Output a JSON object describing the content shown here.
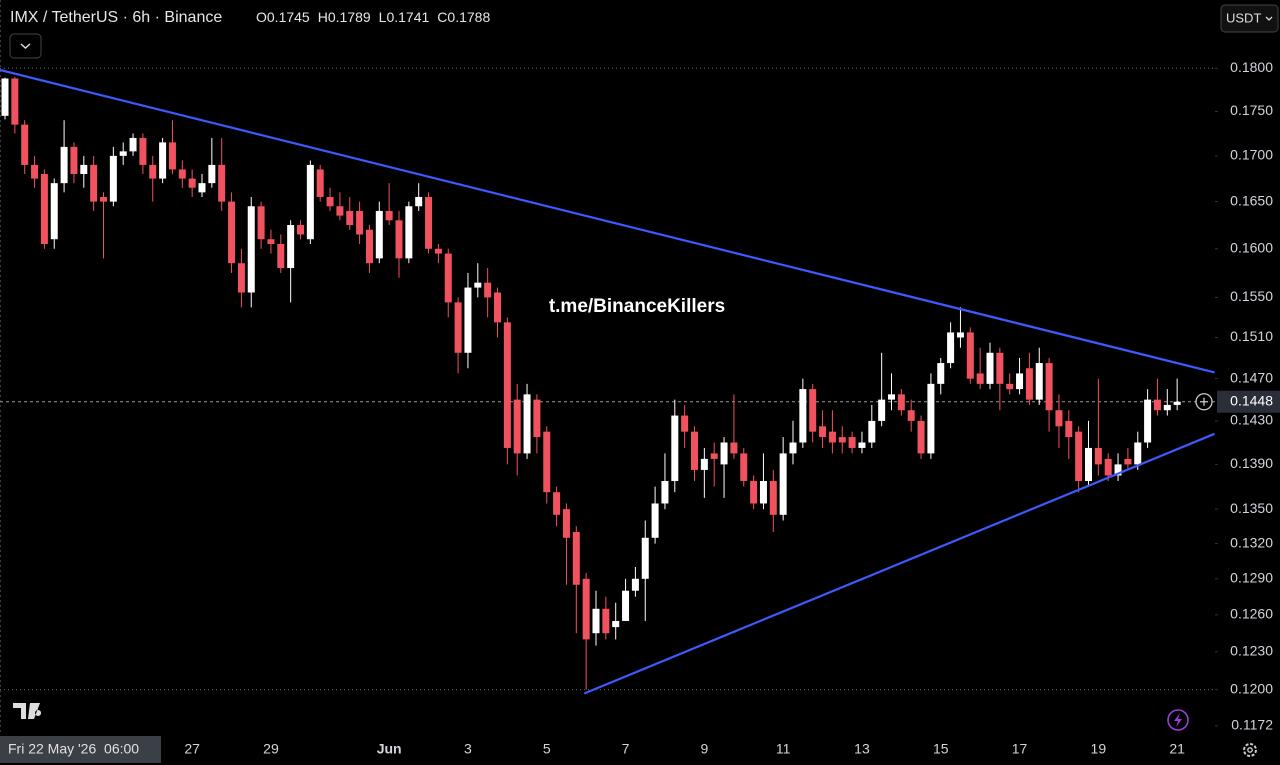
{
  "chart_data": {
    "type": "candlestick",
    "title": "IMX / TetherUS · 6h · Binance",
    "legend": [
      {
        "label": "O",
        "value": 0.1745
      },
      {
        "label": "H",
        "value": 0.1789
      },
      {
        "label": "L",
        "value": 0.1741
      },
      {
        "label": "C",
        "value": 0.1788
      }
    ],
    "currency_button": "USDT",
    "watermark": "t.me/BinanceKillers",
    "crosshair_time": "Fri 22 May '26  06:00",
    "log_scale": true,
    "up_color": "#ffffff",
    "down_color": "#f0525f",
    "ylim": [
      0.1165,
      0.1882
    ],
    "yticks": [
      {
        "value": 0.18,
        "label": "0.1800"
      },
      {
        "value": 0.175,
        "label": "0.1750"
      },
      {
        "value": 0.17,
        "label": "0.1700"
      },
      {
        "value": 0.165,
        "label": "0.1650"
      },
      {
        "value": 0.16,
        "label": "0.1600"
      },
      {
        "value": 0.155,
        "label": "0.1550"
      },
      {
        "value": 0.151,
        "label": "0.1510"
      },
      {
        "value": 0.147,
        "label": "0.1470"
      },
      {
        "value": 0.143,
        "label": "0.1430"
      },
      {
        "value": 0.139,
        "label": "0.1390"
      },
      {
        "value": 0.135,
        "label": "0.1350"
      },
      {
        "value": 0.132,
        "label": "0.1320"
      },
      {
        "value": 0.129,
        "label": "0.1290"
      },
      {
        "value": 0.126,
        "label": "0.1260"
      },
      {
        "value": 0.123,
        "label": "0.1230"
      },
      {
        "value": 0.12,
        "label": "0.1200"
      },
      0.1172
    ],
    "dotted_levels": [
      0.18,
      0.12
    ],
    "last_price": 0.1448,
    "categories": [
      null,
      null,
      null,
      null,
      null,
      null,
      null,
      null,
      null,
      null,
      null,
      null,
      null,
      null,
      null,
      null,
      null,
      null,
      null,
      "27",
      null,
      null,
      null,
      null,
      null,
      null,
      null,
      "29",
      null,
      null,
      null,
      null,
      null,
      null,
      null,
      null,
      null,
      null,
      null,
      "Jun",
      null,
      null,
      null,
      null,
      null,
      null,
      null,
      "3",
      null,
      null,
      null,
      null,
      null,
      null,
      null,
      "5",
      null,
      null,
      null,
      null,
      null,
      null,
      null,
      "7",
      null,
      null,
      null,
      null,
      null,
      null,
      null,
      "9",
      null,
      null,
      null,
      null,
      null,
      null,
      null,
      "11",
      null,
      null,
      null,
      null,
      null,
      null,
      null,
      "13",
      null,
      null,
      null,
      null,
      null,
      null,
      null,
      "15",
      null,
      null,
      null,
      null,
      null,
      null,
      null,
      "17",
      null,
      null,
      null,
      null,
      null,
      null,
      null,
      "19",
      null,
      null,
      null,
      null,
      null,
      null,
      null,
      "21"
    ],
    "ohlc": [
      [
        0.1745,
        0.1789,
        0.1741,
        0.1788
      ],
      [
        0.1788,
        0.179,
        0.1725,
        0.1735
      ],
      [
        0.1735,
        0.174,
        0.168,
        0.169
      ],
      [
        0.169,
        0.17,
        0.1665,
        0.1675
      ],
      [
        0.168,
        0.1685,
        0.16,
        0.1605
      ],
      [
        0.161,
        0.1675,
        0.16,
        0.167
      ],
      [
        0.167,
        0.174,
        0.166,
        0.171
      ],
      [
        0.171,
        0.1715,
        0.167,
        0.168
      ],
      [
        0.168,
        0.17,
        0.1665,
        0.169
      ],
      [
        0.169,
        0.17,
        0.164,
        0.165
      ],
      [
        0.1655,
        0.166,
        0.159,
        0.165
      ],
      [
        0.165,
        0.171,
        0.1645,
        0.17
      ],
      [
        0.17,
        0.1715,
        0.169,
        0.1705
      ],
      [
        0.1705,
        0.1725,
        0.17,
        0.172
      ],
      [
        0.172,
        0.1725,
        0.168,
        0.169
      ],
      [
        0.169,
        0.17,
        0.165,
        0.1675
      ],
      [
        0.1675,
        0.172,
        0.167,
        0.1715
      ],
      [
        0.1715,
        0.174,
        0.168,
        0.1685
      ],
      [
        0.1685,
        0.1695,
        0.1665,
        0.1675
      ],
      [
        0.1675,
        0.1685,
        0.1655,
        0.1665
      ],
      [
        0.166,
        0.168,
        0.1655,
        0.167
      ],
      [
        0.167,
        0.172,
        0.1665,
        0.169
      ],
      [
        0.169,
        0.172,
        0.164,
        0.165
      ],
      [
        0.165,
        0.166,
        0.1575,
        0.1585
      ],
      [
        0.1585,
        0.16,
        0.154,
        0.1555
      ],
      [
        0.1555,
        0.1655,
        0.154,
        0.1645
      ],
      [
        0.1645,
        0.165,
        0.16,
        0.161
      ],
      [
        0.161,
        0.162,
        0.1595,
        0.1605
      ],
      [
        0.1605,
        0.1615,
        0.1575,
        0.158
      ],
      [
        0.158,
        0.163,
        0.1545,
        0.1625
      ],
      [
        0.1625,
        0.163,
        0.161,
        0.1615
      ],
      [
        0.161,
        0.1695,
        0.1605,
        0.169
      ],
      [
        0.1685,
        0.169,
        0.165,
        0.1655
      ],
      [
        0.1655,
        0.1665,
        0.164,
        0.1645
      ],
      [
        0.1645,
        0.166,
        0.163,
        0.1635
      ],
      [
        0.164,
        0.1655,
        0.162,
        0.1625
      ],
      [
        0.164,
        0.165,
        0.1605,
        0.1615
      ],
      [
        0.162,
        0.1625,
        0.1575,
        0.1585
      ],
      [
        0.159,
        0.165,
        0.1585,
        0.164
      ],
      [
        0.164,
        0.167,
        0.1625,
        0.163
      ],
      [
        0.163,
        0.164,
        0.157,
        0.159
      ],
      [
        0.159,
        0.165,
        0.1585,
        0.1645
      ],
      [
        0.1645,
        0.167,
        0.164,
        0.1655
      ],
      [
        0.1655,
        0.166,
        0.1595,
        0.16
      ],
      [
        0.16,
        0.1605,
        0.1585,
        0.1595
      ],
      [
        0.1595,
        0.16,
        0.153,
        0.1545
      ],
      [
        0.1545,
        0.155,
        0.1475,
        0.1495
      ],
      [
        0.1495,
        0.1575,
        0.148,
        0.156
      ],
      [
        0.156,
        0.1585,
        0.155,
        0.1565
      ],
      [
        0.1565,
        0.158,
        0.153,
        0.155
      ],
      [
        0.1555,
        0.156,
        0.151,
        0.1525
      ],
      [
        0.1525,
        0.153,
        0.139,
        0.1405
      ],
      [
        0.145,
        0.1465,
        0.138,
        0.14
      ],
      [
        0.14,
        0.1465,
        0.1395,
        0.1455
      ],
      [
        0.145,
        0.1455,
        0.14,
        0.1415
      ],
      [
        0.142,
        0.1425,
        0.1355,
        0.1365
      ],
      [
        0.1365,
        0.137,
        0.1335,
        0.1345
      ],
      [
        0.135,
        0.1355,
        0.1285,
        0.1325
      ],
      [
        0.133,
        0.1335,
        0.1245,
        0.1285
      ],
      [
        0.129,
        0.1295,
        0.12,
        0.124
      ],
      [
        0.1245,
        0.128,
        0.1235,
        0.1265
      ],
      [
        0.1265,
        0.1275,
        0.124,
        0.1245
      ],
      [
        0.125,
        0.127,
        0.124,
        0.1255
      ],
      [
        0.1255,
        0.129,
        0.1255,
        0.128
      ],
      [
        0.128,
        0.13,
        0.1275,
        0.129
      ],
      [
        0.129,
        0.134,
        0.1255,
        0.1325
      ],
      [
        0.1325,
        0.137,
        0.132,
        0.1355
      ],
      [
        0.1355,
        0.14,
        0.135,
        0.1375
      ],
      [
        0.1375,
        0.145,
        0.1365,
        0.1435
      ],
      [
        0.1435,
        0.1445,
        0.1405,
        0.142
      ],
      [
        0.142,
        0.1425,
        0.1375,
        0.1385
      ],
      [
        0.1385,
        0.1405,
        0.136,
        0.1395
      ],
      [
        0.14,
        0.141,
        0.137,
        0.1395
      ],
      [
        0.139,
        0.1415,
        0.136,
        0.141
      ],
      [
        0.141,
        0.1455,
        0.1395,
        0.14
      ],
      [
        0.14,
        0.1405,
        0.137,
        0.1375
      ],
      [
        0.1375,
        0.138,
        0.135,
        0.1355
      ],
      [
        0.1355,
        0.14,
        0.135,
        0.1375
      ],
      [
        0.1375,
        0.1385,
        0.133,
        0.1345
      ],
      [
        0.1345,
        0.1415,
        0.134,
        0.14
      ],
      [
        0.14,
        0.143,
        0.139,
        0.141
      ],
      [
        0.141,
        0.147,
        0.1405,
        0.146
      ],
      [
        0.146,
        0.1465,
        0.141,
        0.142
      ],
      [
        0.1425,
        0.144,
        0.1405,
        0.1415
      ],
      [
        0.142,
        0.144,
        0.14,
        0.141
      ],
      [
        0.1415,
        0.1425,
        0.14,
        0.141
      ],
      [
        0.1415,
        0.142,
        0.14,
        0.1405
      ],
      [
        0.1405,
        0.142,
        0.14,
        0.141
      ],
      [
        0.141,
        0.1445,
        0.1405,
        0.143
      ],
      [
        0.143,
        0.1495,
        0.1425,
        0.145
      ],
      [
        0.145,
        0.1475,
        0.144,
        0.1455
      ],
      [
        0.1455,
        0.146,
        0.1435,
        0.144
      ],
      [
        0.144,
        0.145,
        0.142,
        0.143
      ],
      [
        0.143,
        0.1435,
        0.1395,
        0.14
      ],
      [
        0.14,
        0.1475,
        0.1395,
        0.1465
      ],
      [
        0.1465,
        0.149,
        0.1455,
        0.1485
      ],
      [
        0.1485,
        0.1525,
        0.148,
        0.1515
      ],
      [
        0.151,
        0.154,
        0.15,
        0.1515
      ],
      [
        0.1515,
        0.152,
        0.1465,
        0.147
      ],
      [
        0.1475,
        0.15,
        0.146,
        0.1465
      ],
      [
        0.1465,
        0.1505,
        0.146,
        0.1495
      ],
      [
        0.1495,
        0.15,
        0.144,
        0.1465
      ],
      [
        0.1465,
        0.1475,
        0.1455,
        0.146
      ],
      [
        0.146,
        0.149,
        0.1455,
        0.1475
      ],
      [
        0.148,
        0.1495,
        0.1445,
        0.145
      ],
      [
        0.145,
        0.15,
        0.1445,
        0.1485
      ],
      [
        0.1485,
        0.149,
        0.142,
        0.144
      ],
      [
        0.144,
        0.1455,
        0.1405,
        0.1425
      ],
      [
        0.143,
        0.144,
        0.1395,
        0.1415
      ],
      [
        0.142,
        0.1425,
        0.1365,
        0.1375
      ],
      [
        0.1375,
        0.143,
        0.137,
        0.1405
      ],
      [
        0.1405,
        0.147,
        0.138,
        0.139
      ],
      [
        0.1395,
        0.14,
        0.1375,
        0.138
      ],
      [
        0.138,
        0.14,
        0.1375,
        0.139
      ],
      [
        0.1395,
        0.1405,
        0.1385,
        0.139
      ],
      [
        0.139,
        0.142,
        0.1385,
        0.141
      ],
      [
        0.141,
        0.146,
        0.1405,
        0.145
      ],
      [
        0.145,
        0.147,
        0.1435,
        0.144
      ],
      [
        0.144,
        0.146,
        0.1435,
        0.1445
      ],
      [
        0.1445,
        0.147,
        0.144,
        0.1448
      ]
    ],
    "trendlines": [
      {
        "x": [
          -0.5,
          122.8
        ],
        "values": [
          0.1798,
          0.1476
        ],
        "color": "#3d5afe"
      },
      {
        "x": [
          58.8,
          122.8
        ],
        "values": [
          0.1197,
          0.1418
        ],
        "color": "#3d5afe"
      }
    ]
  }
}
